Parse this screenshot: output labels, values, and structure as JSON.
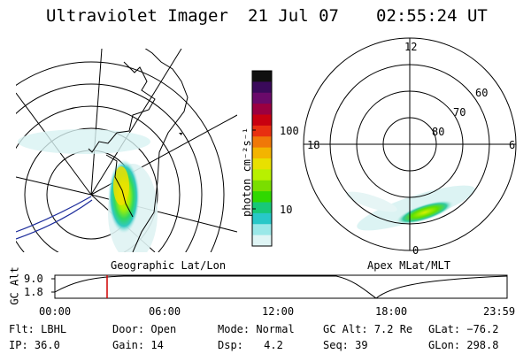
{
  "header": {
    "title": "Ultraviolet Imager",
    "date": "21 Jul 07",
    "time": "02:55:24 UT"
  },
  "left_map": {
    "caption": "Geographic Lat/Lon"
  },
  "colorbar": {
    "unit_label": "photon cm⁻²s⁻¹",
    "ticks": [
      "100",
      "10"
    ],
    "colors": [
      "#101010",
      "#3a0a5a",
      "#6a0a6a",
      "#9b0040",
      "#c80010",
      "#e83010",
      "#f07808",
      "#f3b400",
      "#e8e000",
      "#b8f000",
      "#7ade00",
      "#30d800",
      "#18c878",
      "#28c8c8",
      "#9ae8e8",
      "#dff5f5"
    ]
  },
  "polar_plot": {
    "caption": "Apex MLat/MLT",
    "mlt_labels": [
      "12",
      "18",
      "6",
      "0"
    ],
    "mlat_labels": [
      "60",
      "70",
      "80"
    ]
  },
  "altitude_track": {
    "y_axis_label": "GC Alt",
    "y_ticks": [
      "9.0",
      "1.8"
    ],
    "x_ticks": [
      "00:00",
      "06:00",
      "12:00",
      "18:00",
      "23:59"
    ],
    "marker_color": "#d00000"
  },
  "info": {
    "flt_label": "Flt:",
    "flt_value": "LBHL",
    "ip_label": "IP:",
    "ip_value": "36.0",
    "door_label": "Door:",
    "door_value": "Open",
    "gain_label": "Gain:",
    "gain_value": "14",
    "mode_label": "Mode:",
    "mode_value": "Normal",
    "dsp_label": "Dsp:",
    "dsp_value": "4.2",
    "gcalt_label": "GC Alt:",
    "gcalt_value": "7.2 Re",
    "seq_label": "Seq:",
    "seq_value": "39",
    "glat_label": "GLat:",
    "glat_value": "−76.2",
    "glon_label": "GLon:",
    "glon_value": "298.8"
  }
}
